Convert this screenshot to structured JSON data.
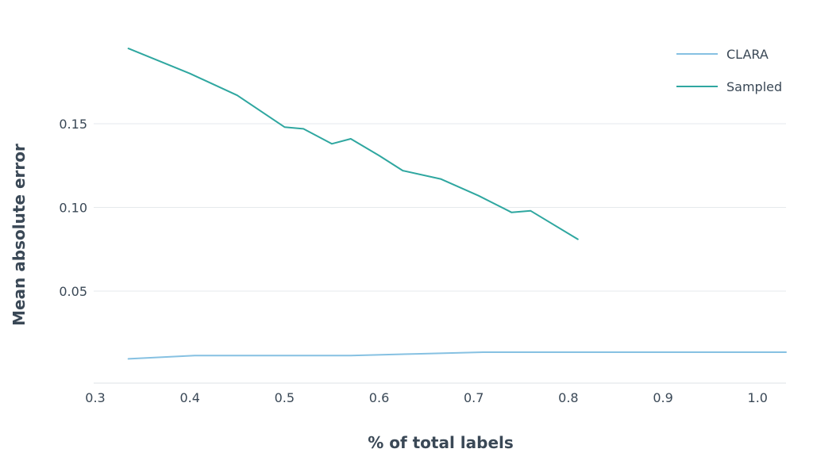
{
  "chart_data": {
    "type": "line",
    "title": "",
    "xlabel": "% of total labels",
    "ylabel": "Mean absolute error",
    "xlim": [
      0.3,
      1.03
    ],
    "ylim": [
      -0.005,
      0.205
    ],
    "x_ticks": [
      0.3,
      0.4,
      0.5,
      0.6,
      0.7,
      0.8,
      0.9,
      1.0
    ],
    "x_tick_labels": [
      "0.3",
      "0.4",
      "0.5",
      "0.6",
      "0.7",
      "0.8",
      "0.9",
      "1.0"
    ],
    "y_ticks": [
      0.05,
      0.1,
      0.15
    ],
    "y_tick_labels": [
      "0.05",
      "0.10",
      "0.15"
    ],
    "grid": "horizontal",
    "legend_position": "top-right",
    "series": [
      {
        "name": "CLARA",
        "color": "#86c1e2",
        "x": [
          0.335,
          0.405,
          0.5,
          0.57,
          0.64,
          0.71,
          0.8,
          0.9,
          1.03
        ],
        "y": [
          0.0095,
          0.0115,
          0.0115,
          0.0115,
          0.0125,
          0.0135,
          0.0135,
          0.0135,
          0.0135
        ]
      },
      {
        "name": "Sampled",
        "color": "#2fa7a0",
        "x": [
          0.335,
          0.4,
          0.45,
          0.5,
          0.52,
          0.55,
          0.57,
          0.6,
          0.625,
          0.665,
          0.705,
          0.74,
          0.76,
          0.81
        ],
        "y": [
          0.195,
          0.18,
          0.167,
          0.148,
          0.147,
          0.138,
          0.141,
          0.131,
          0.122,
          0.117,
          0.107,
          0.097,
          0.098,
          0.081
        ]
      }
    ]
  }
}
